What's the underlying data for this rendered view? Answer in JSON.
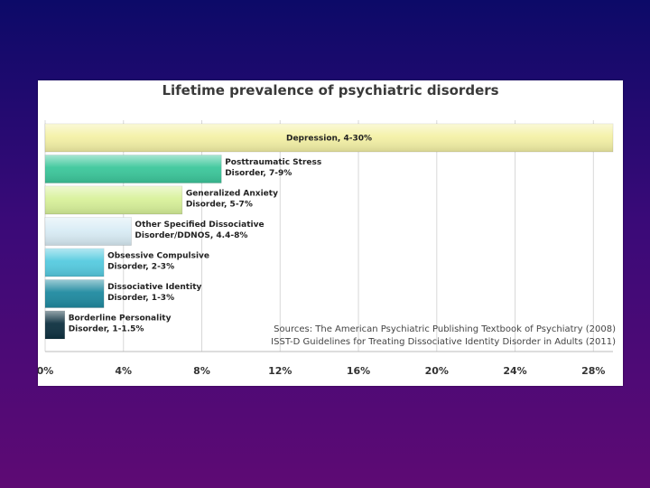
{
  "colors": {
    "depression": "#f4f1a6",
    "ptsd": "#3cc79b",
    "gad": "#d8f19a",
    "osdd": "#d9ecf5",
    "ocd": "#56cbe0",
    "did": "#1f8aa0",
    "bpd": "#0e3140",
    "grid": "#d8d8d8"
  },
  "chart_data": {
    "type": "bar",
    "orientation": "horizontal",
    "title": "Lifetime prevalence of psychiatric disorders",
    "xlim": [
      0,
      29
    ],
    "ticks": [
      "0%",
      "4%",
      "8%",
      "12%",
      "16%",
      "20%",
      "24%",
      "28%"
    ],
    "tick_values": [
      0,
      4,
      8,
      12,
      16,
      20,
      24,
      28
    ],
    "grid": true,
    "bars": [
      {
        "label_lines": [
          "Depression, 4-30%"
        ],
        "value": 29,
        "color_key": "depression",
        "label_inside": true
      },
      {
        "label_lines": [
          "Posttraumatic Stress",
          "Disorder, 7-9%"
        ],
        "value": 9,
        "color_key": "ptsd"
      },
      {
        "label_lines": [
          "Generalized Anxiety",
          "Disorder, 5-7%"
        ],
        "value": 7,
        "color_key": "gad"
      },
      {
        "label_lines": [
          "Other Specified Dissociative",
          "Disorder/DDNOS, 4.4-8%"
        ],
        "value": 4.4,
        "color_key": "osdd"
      },
      {
        "label_lines": [
          "Obsessive Compulsive",
          "Disorder, 2-3%"
        ],
        "value": 3,
        "color_key": "ocd"
      },
      {
        "label_lines": [
          "Dissociative Identity",
          "Disorder, 1-3%"
        ],
        "value": 3,
        "color_key": "did"
      },
      {
        "label_lines": [
          "Borderline Personality",
          "Disorder, 1-1.5%"
        ],
        "value": 1,
        "color_key": "bpd"
      }
    ],
    "sources": [
      "Sources: The American Psychiatric Publishing Textbook of Psychiatry (2008)",
      "ISST-D Guidelines for Treating Dissociative Identity Disorder in Adults (2011)"
    ]
  }
}
